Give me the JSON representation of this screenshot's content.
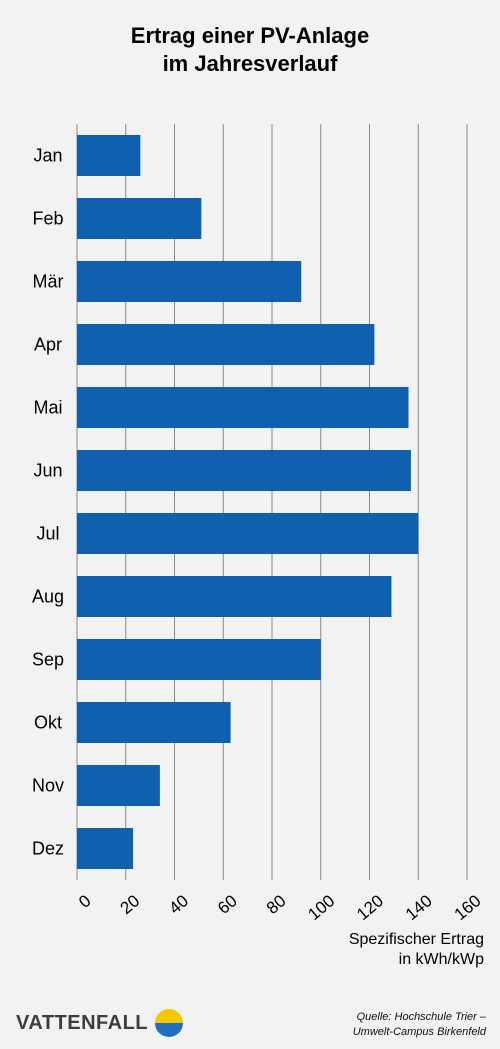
{
  "title_line1": "Ertrag einer PV-Anlage",
  "title_line2": "im Jahresverlauf",
  "chart_data": {
    "type": "bar",
    "orientation": "horizontal",
    "categories": [
      "Jan",
      "Feb",
      "Mär",
      "Apr",
      "Mai",
      "Jun",
      "Jul",
      "Aug",
      "Sep",
      "Okt",
      "Nov",
      "Dez"
    ],
    "values": [
      26,
      51,
      92,
      122,
      136,
      137,
      140,
      129,
      100,
      63,
      34,
      23
    ],
    "xlabel_line1": "Spezifischer Ertrag",
    "xlabel_line2": "in kWh/kWp",
    "xlim": [
      0,
      160
    ],
    "xticks": [
      0,
      20,
      40,
      60,
      80,
      100,
      120,
      140,
      160
    ],
    "grid": "vertical",
    "bar_color": "#0f61b0"
  },
  "footer": {
    "logo_text": "VATTENFALL",
    "source_line1": "Quelle: Hochschule Trier –",
    "source_line2": "Umwelt-Campus Birkenfeld"
  },
  "colors": {
    "logo_yellow": "#f5c800",
    "logo_blue": "#1f6fc0"
  }
}
